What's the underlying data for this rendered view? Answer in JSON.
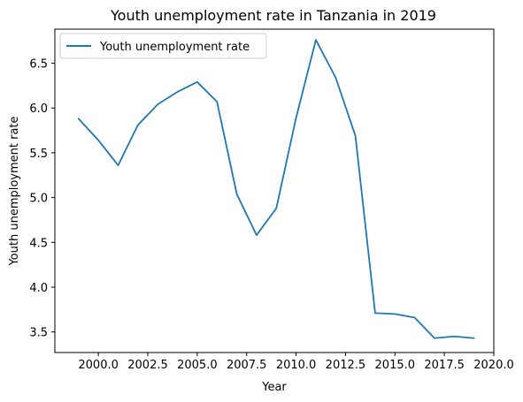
{
  "chart_data": {
    "type": "line",
    "title": "Youth unemployment rate in Tanzania in 2019",
    "xlabel": "Year",
    "ylabel": "Youth unemployment rate",
    "xlim": [
      1997.8,
      2020.0
    ],
    "ylim": [
      3.27,
      6.88
    ],
    "xticks": [
      2000.0,
      2002.5,
      2005.0,
      2007.5,
      2010.0,
      2012.5,
      2015.0,
      2017.5,
      2020.0
    ],
    "xtick_labels": [
      "2000.0",
      "2002.5",
      "2005.0",
      "2007.5",
      "2010.0",
      "2012.5",
      "2015.0",
      "2017.5",
      "2020.0"
    ],
    "yticks": [
      3.5,
      4.0,
      4.5,
      5.0,
      5.5,
      6.0,
      6.5
    ],
    "ytick_labels": [
      "3.5",
      "4.0",
      "4.5",
      "5.0",
      "5.5",
      "6.0",
      "6.5"
    ],
    "grid": false,
    "legend_position": "top-left",
    "series": [
      {
        "name": "Youth unemployment rate",
        "color": "#1f77b4",
        "x": [
          1999,
          2000,
          2001,
          2002,
          2003,
          2004,
          2005,
          2006,
          2007,
          2008,
          2009,
          2010,
          2011,
          2012,
          2013,
          2014,
          2015,
          2016,
          2017,
          2018,
          2019
        ],
        "y": [
          5.88,
          5.64,
          5.36,
          5.81,
          6.04,
          6.18,
          6.29,
          6.07,
          5.04,
          4.58,
          4.88,
          5.89,
          6.76,
          6.34,
          5.69,
          3.71,
          3.7,
          3.66,
          3.43,
          3.45,
          3.43
        ]
      }
    ]
  }
}
